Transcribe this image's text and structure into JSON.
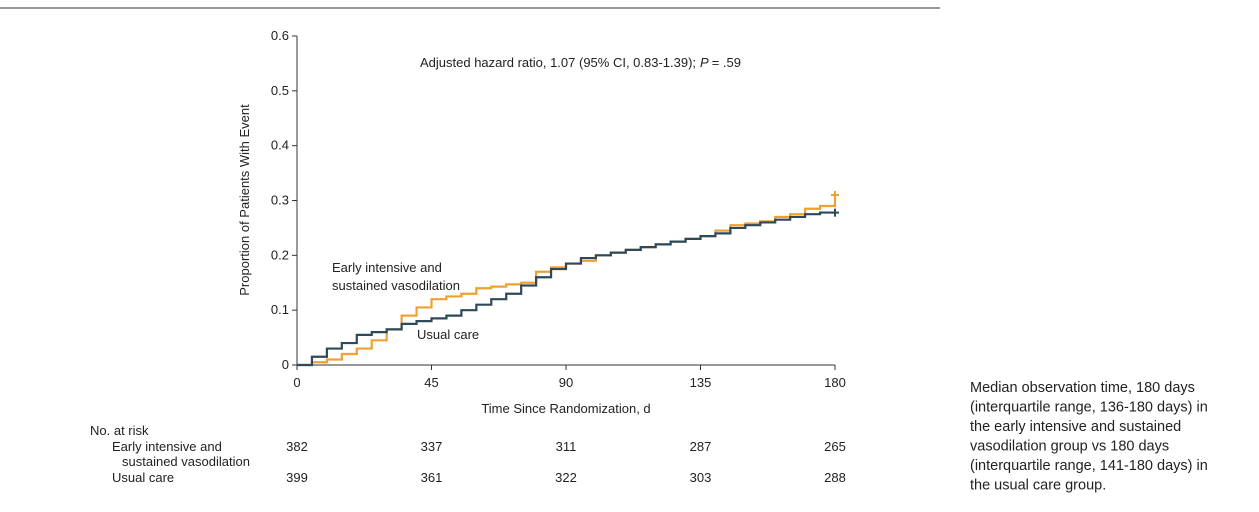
{
  "chart_data": {
    "type": "step",
    "annotation": [
      "Adjusted hazard ratio, 1.07 (95% CI, 0.83-1.39);",
      "P",
      "= .59"
    ],
    "xlabel": "Time Since Randomization, d",
    "ylabel": "Proportion of Patients With Event",
    "x": [
      0,
      5,
      10,
      15,
      20,
      25,
      30,
      35,
      40,
      45,
      50,
      55,
      60,
      65,
      70,
      75,
      80,
      85,
      90,
      95,
      100,
      105,
      110,
      115,
      120,
      125,
      130,
      135,
      140,
      145,
      150,
      155,
      160,
      165,
      170,
      175,
      180
    ],
    "series": [
      {
        "name_lines": [
          "Early intensive and",
          "sustained vasodilation"
        ],
        "color": "#f0a033",
        "values": [
          0,
          0.005,
          0.01,
          0.02,
          0.03,
          0.045,
          0.065,
          0.09,
          0.105,
          0.12,
          0.125,
          0.13,
          0.14,
          0.143,
          0.147,
          0.15,
          0.17,
          0.178,
          0.185,
          0.19,
          0.2,
          0.205,
          0.21,
          0.215,
          0.22,
          0.225,
          0.23,
          0.235,
          0.245,
          0.255,
          0.258,
          0.262,
          0.27,
          0.275,
          0.285,
          0.29,
          0.31
        ]
      },
      {
        "name_lines": [
          "Usual care"
        ],
        "color": "#2e4a5a",
        "values": [
          0,
          0.015,
          0.03,
          0.04,
          0.055,
          0.06,
          0.065,
          0.075,
          0.08,
          0.085,
          0.09,
          0.1,
          0.11,
          0.12,
          0.13,
          0.145,
          0.16,
          0.175,
          0.185,
          0.195,
          0.2,
          0.205,
          0.21,
          0.215,
          0.22,
          0.225,
          0.23,
          0.235,
          0.24,
          0.25,
          0.255,
          0.26,
          0.265,
          0.27,
          0.275,
          0.278,
          0.278
        ]
      }
    ],
    "xlim": [
      0,
      180
    ],
    "xticks": [
      0,
      45,
      90,
      135,
      180
    ],
    "ylim": [
      0,
      0.6
    ],
    "yticks": [
      0,
      0.1,
      0.2,
      0.3,
      0.4,
      0.5,
      0.6
    ],
    "risk_table": {
      "title": "No. at risk",
      "rows": [
        {
          "label_lines": [
            "Early intensive and",
            "sustained vasodilation"
          ],
          "values": [
            382,
            337,
            311,
            287,
            265
          ]
        },
        {
          "label_lines": [
            "Usual care"
          ],
          "values": [
            399,
            361,
            322,
            303,
            288
          ]
        }
      ]
    },
    "note_lines": [
      "Median observation time, 180 days",
      "(interquartile range, 136-180 days) in",
      "the early intensive and sustained",
      "vasodilation group vs 180 days",
      "(interquartile range, 141-180 days) in",
      "the usual care group."
    ]
  }
}
